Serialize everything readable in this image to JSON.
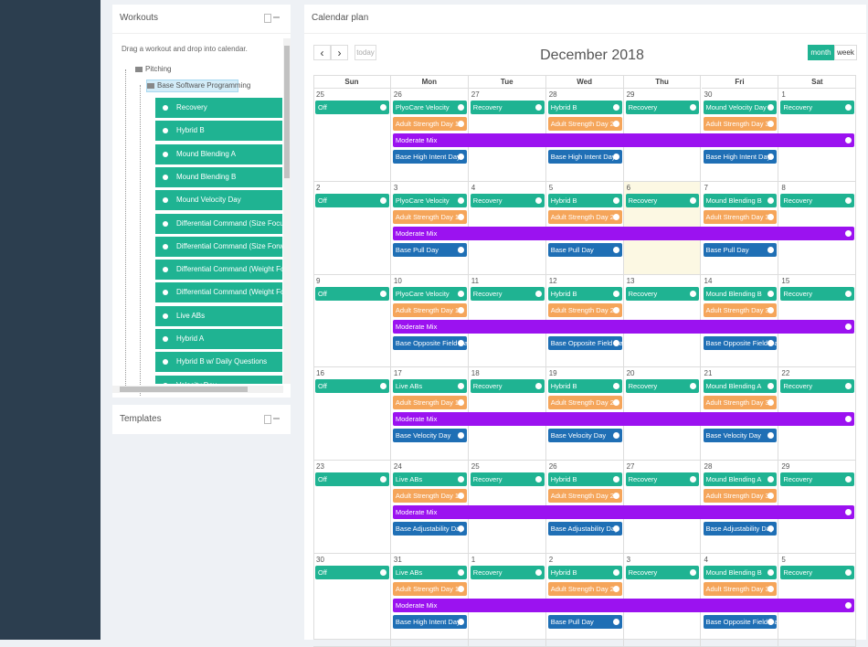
{
  "workouts": {
    "title": "Workouts",
    "hint": "Drag a workout and drop into calendar.",
    "root": "Pitching",
    "folder": "Base Software Programming",
    "items": [
      "Recovery",
      "Hybrid B",
      "Mound Blending A",
      "Mound Blending B",
      "Mound Velocity Day",
      "Differential Command (Size Focus)",
      "Differential Command (Size Forward)",
      "Differential Command (Weight Forward)",
      "Differential Command (Weight Focus)",
      "Live ABs",
      "Hybrid A",
      "Hybrid B w/ Daily Questions",
      "Velocity Day"
    ]
  },
  "templates": {
    "title": "Templates"
  },
  "calendar": {
    "title": "Calendar plan",
    "prev": "‹",
    "next": "›",
    "today": "today",
    "heading": "December 2018",
    "views": [
      "month",
      "week"
    ],
    "weekdays": [
      "Sun",
      "Mon",
      "Tue",
      "Wed",
      "Thu",
      "Fri",
      "Sat"
    ],
    "weeks": [
      {
        "days": [
          25,
          26,
          27,
          28,
          29,
          30,
          1
        ],
        "primary": [
          "Off",
          "PlyoCare Velocity",
          "Recovery",
          "Hybrid B",
          "Recovery",
          "Mound Velocity Day",
          "Recovery"
        ],
        "strength": [
          null,
          "Adult Strength Day 1",
          null,
          "Adult Strength Day 2",
          null,
          "Adult Strength Day 3",
          null
        ],
        "mix": "Moderate Mix",
        "base": [
          null,
          "Base High Intent Day",
          null,
          "Base High Intent Day",
          null,
          "Base High Intent Day",
          null
        ]
      },
      {
        "days": [
          2,
          3,
          4,
          5,
          6,
          7,
          8
        ],
        "primary": [
          "Off",
          "PlyoCare Velocity",
          "Recovery",
          "Hybrid B",
          "Recovery",
          "Mound Blending B",
          "Recovery"
        ],
        "strength": [
          null,
          "Adult Strength Day 1",
          null,
          "Adult Strength Day 2",
          null,
          "Adult Strength Day 3",
          null
        ],
        "mix": "Moderate Mix",
        "base": [
          null,
          "Base Pull Day",
          null,
          "Base Pull Day",
          null,
          "Base Pull Day",
          null
        ]
      },
      {
        "days": [
          9,
          10,
          11,
          12,
          13,
          14,
          15
        ],
        "primary": [
          "Off",
          "PlyoCare Velocity",
          "Recovery",
          "Hybrid B",
          "Recovery",
          "Mound Blending B",
          "Recovery"
        ],
        "strength": [
          null,
          "Adult Strength Day 1",
          null,
          "Adult Strength Day 2",
          null,
          "Adult Strength Day 3",
          null
        ],
        "mix": "Moderate Mix",
        "base": [
          null,
          "Base Opposite Field Day",
          null,
          "Base Opposite Field Day",
          null,
          "Base Opposite Field Day",
          null
        ]
      },
      {
        "days": [
          16,
          17,
          18,
          19,
          20,
          21,
          22
        ],
        "primary": [
          "Off",
          "Live ABs",
          "Recovery",
          "Hybrid B",
          "Recovery",
          "Mound Blending A",
          "Recovery"
        ],
        "strength": [
          null,
          "Adult Strength Day 1",
          null,
          "Adult Strength Day 2",
          null,
          "Adult Strength Day 3",
          null
        ],
        "mix": "Moderate Mix",
        "base": [
          null,
          "Base Velocity Day",
          null,
          "Base Velocity Day",
          null,
          "Base Velocity Day",
          null
        ]
      },
      {
        "days": [
          23,
          24,
          25,
          26,
          27,
          28,
          29
        ],
        "primary": [
          "Off",
          "Live ABs",
          "Recovery",
          "Hybrid B",
          "Recovery",
          "Mound Blending A",
          "Recovery"
        ],
        "strength": [
          null,
          "Adult Strength Day 1",
          null,
          "Adult Strength Day 2",
          null,
          "Adult Strength Day 3",
          null
        ],
        "mix": "Moderate Mix",
        "base": [
          null,
          "Base Adjustability Day",
          null,
          "Base Adjustability Day",
          null,
          "Base Adjustability Day",
          null
        ]
      },
      {
        "days": [
          30,
          31,
          1,
          2,
          3,
          4,
          5
        ],
        "primary": [
          "Off",
          "Live ABs",
          "Recovery",
          "Hybrid B",
          "Recovery",
          "Mound Blending B",
          "Recovery"
        ],
        "strength": [
          null,
          "Adult Strength Day 1",
          null,
          "Adult Strength Day 2",
          null,
          "Adult Strength Day 3",
          null
        ],
        "mix": "Moderate Mix",
        "base": [
          null,
          "Base High Intent Day",
          null,
          "Base Pull Day",
          null,
          "Base Opposite Field Day",
          null
        ]
      }
    ]
  }
}
